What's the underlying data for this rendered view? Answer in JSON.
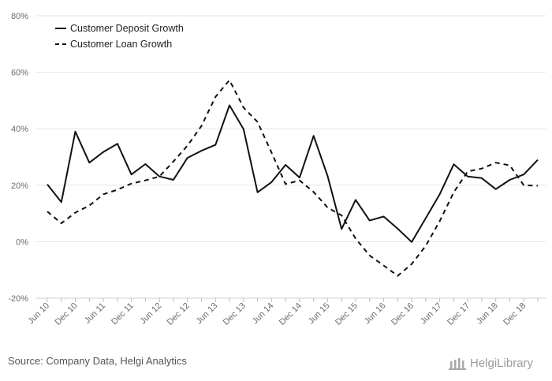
{
  "source_text": "Source: Company Data, Helgi Analytics",
  "brand": {
    "name": "HelgiLibrary",
    "icon": "library-building-icon"
  },
  "chart_data": {
    "type": "line",
    "ylim": [
      -20,
      80
    ],
    "y_ticks": [
      -20,
      0,
      20,
      40,
      60,
      80
    ],
    "y_tick_labels": [
      "-20%",
      "0%",
      "20%",
      "40%",
      "60%",
      "80%"
    ],
    "x_tick_labels": [
      "Jun 10",
      "Dec 10",
      "Jun 11",
      "Dec 11",
      "Jun 12",
      "Dec 12",
      "Jun 13",
      "Dec 13",
      "Jun 14",
      "Dec 14",
      "Jun 15",
      "Dec 15",
      "Jun 16",
      "Dec 16",
      "Jun 17",
      "Dec 17",
      "Jun 18",
      "Dec 18"
    ],
    "x": [
      "Jun 10",
      "Sep 10",
      "Dec 10",
      "Mar 11",
      "Jun 11",
      "Sep 11",
      "Dec 11",
      "Mar 12",
      "Jun 12",
      "Sep 12",
      "Dec 12",
      "Mar 13",
      "Jun 13",
      "Sep 13",
      "Dec 13",
      "Mar 14",
      "Jun 14",
      "Sep 14",
      "Dec 14",
      "Mar 15",
      "Jun 15",
      "Sep 15",
      "Dec 15",
      "Mar 16",
      "Jun 16",
      "Sep 16",
      "Dec 16",
      "Mar 17",
      "Jun 17",
      "Sep 17",
      "Dec 17",
      "Mar 18",
      "Jun 18",
      "Sep 18",
      "Dec 18",
      "Mar 19"
    ],
    "grid": true,
    "legend_position": "top-left",
    "series": [
      {
        "name": "Customer Deposit Growth",
        "style": "solid",
        "color": "#111111",
        "values": [
          20.3,
          14.0,
          39.0,
          28.0,
          31.8,
          34.7,
          23.8,
          27.5,
          23.1,
          21.9,
          29.7,
          32.2,
          34.3,
          48.3,
          39.9,
          17.5,
          21.1,
          27.2,
          22.7,
          37.5,
          23.3,
          4.5,
          14.8,
          7.5,
          8.9,
          4.6,
          -0.1,
          8.3,
          16.8,
          27.4,
          23.1,
          22.5,
          18.6,
          21.9,
          23.8,
          29.0
        ]
      },
      {
        "name": "Customer Loan Growth",
        "style": "dashed",
        "color": "#111111",
        "values": [
          10.7,
          6.5,
          10.3,
          12.8,
          16.8,
          18.4,
          20.6,
          21.7,
          23.1,
          28.4,
          34.0,
          41.0,
          51.3,
          57.2,
          47.5,
          42.4,
          31.6,
          20.4,
          21.7,
          17.6,
          12.1,
          9.3,
          1.1,
          -4.9,
          -8.4,
          -12.1,
          -7.9,
          -1.5,
          7.3,
          17.5,
          24.9,
          25.9,
          28.0,
          27.0,
          20.0,
          19.8
        ]
      }
    ]
  }
}
